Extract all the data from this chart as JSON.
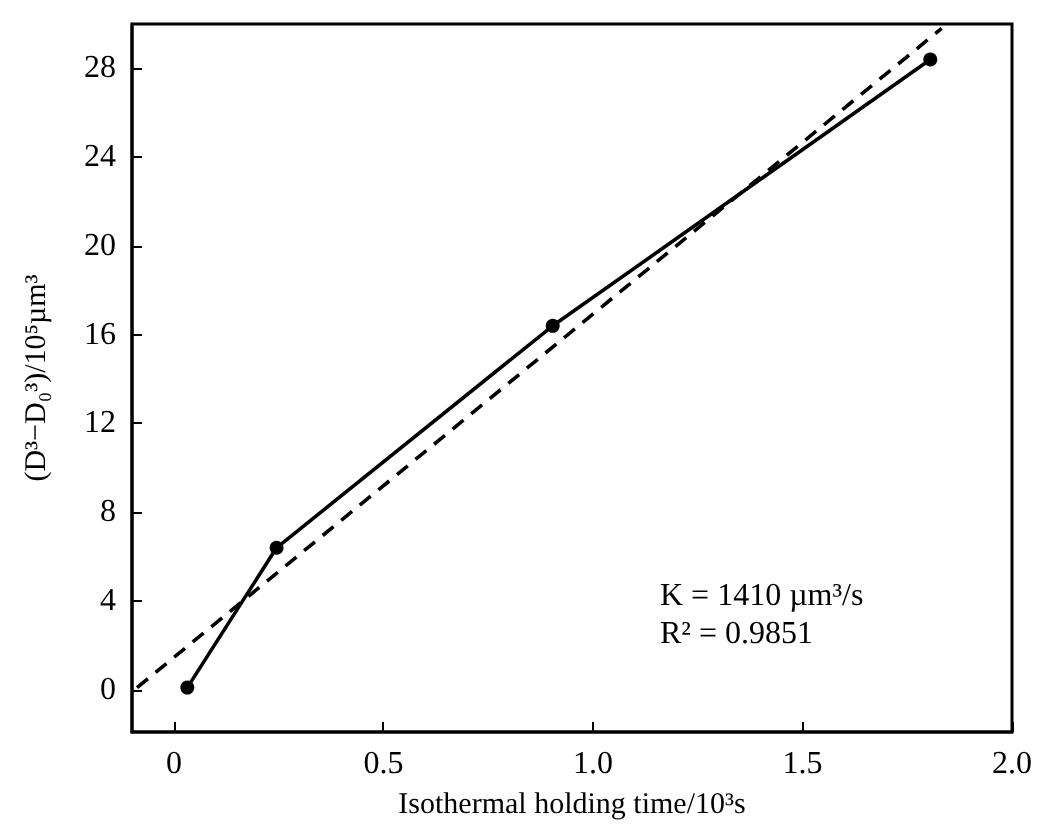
{
  "chart_data": {
    "type": "line",
    "xlabel": "Isothermal holding time/10³s",
    "ylabel": "(D³−D₀³)/10⁵µm³",
    "xlim": [
      -0.1,
      2.0
    ],
    "xticks": [
      {
        "value": 0,
        "label": "0"
      },
      {
        "value": 0.5,
        "label": "0.5"
      },
      {
        "value": 1,
        "label": "1.0"
      },
      {
        "value": 1.5,
        "label": "1.5"
      },
      {
        "value": 2,
        "label": "2.0"
      }
    ],
    "ylim": [
      -1.9,
      30
    ],
    "yticks": [
      0,
      4,
      8,
      12,
      16,
      20,
      24,
      28
    ],
    "grid": false,
    "annotations": [
      "K = 1410 µm³/s",
      "R² = 0.9851"
    ],
    "series": [
      {
        "color": "#000000",
        "x": [
          0.032,
          0.245,
          0.904,
          1.805
        ],
        "values": [
          0.1,
          6.4,
          16.4,
          28.4
        ],
        "marker": "circle",
        "line_style": "solid"
      },
      {
        "color": "#000000",
        "x": [
          -0.088,
          1.832
        ],
        "values": [
          0.1,
          29.8
        ],
        "marker": "none",
        "line_style": "dashed"
      }
    ]
  }
}
